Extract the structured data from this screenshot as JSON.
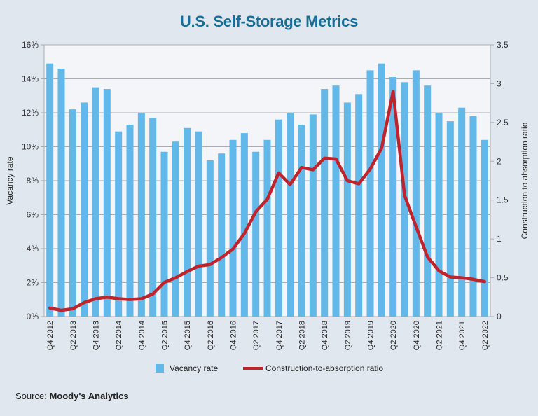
{
  "title": "U.S. Self-Storage Metrics",
  "source": {
    "label": "Source:",
    "name": "Moody's Analytics"
  },
  "chart_data": {
    "type": "bar+line",
    "title": "U.S. Self-Storage Metrics",
    "categories": [
      "Q4 2012",
      "Q1 2013",
      "Q2 2013",
      "Q3 2013",
      "Q4 2013",
      "Q1 2014",
      "Q2 2014",
      "Q3 2014",
      "Q4 2014",
      "Q1 2015",
      "Q2 2015",
      "Q3 2015",
      "Q4 2015",
      "Q1 2016",
      "Q2 2016",
      "Q3 2016",
      "Q4 2016",
      "Q1 2017",
      "Q2 2017",
      "Q3 2017",
      "Q4 2017",
      "Q1 2018",
      "Q2 2018",
      "Q3 2018",
      "Q4 2018",
      "Q1 2019",
      "Q2 2019",
      "Q3 2019",
      "Q4 2019",
      "Q1 2020",
      "Q2 2020",
      "Q3 2020",
      "Q4 2020",
      "Q1 2021",
      "Q2 2021",
      "Q3 2021",
      "Q4 2021",
      "Q1 2022",
      "Q2 2022"
    ],
    "tick_labels": [
      "Q4 2012",
      "Q2 2013",
      "Q4 2013",
      "Q2 2014",
      "Q4 2014",
      "Q2 2015",
      "Q4 2015",
      "Q2 2016",
      "Q4 2016",
      "Q2 2017",
      "Q4 2017",
      "Q2 2018",
      "Q4 2018",
      "Q2 2019",
      "Q4 2019",
      "Q2 2020",
      "Q4 2020",
      "Q2 2021",
      "Q4 2021",
      "Q2 2022"
    ],
    "series": [
      {
        "name": "Vacancy rate",
        "type": "bar",
        "axis": "left",
        "color": "#62b8e8",
        "values": [
          14.9,
          14.6,
          12.2,
          12.6,
          13.5,
          13.4,
          10.9,
          11.3,
          12.0,
          11.7,
          9.7,
          10.3,
          11.1,
          10.9,
          9.2,
          9.6,
          10.4,
          10.8,
          9.7,
          10.4,
          11.6,
          12.0,
          11.3,
          11.9,
          13.4,
          13.6,
          12.6,
          13.1,
          14.5,
          14.9,
          14.1,
          13.8,
          14.5,
          13.6,
          12.0,
          11.5,
          12.3,
          11.8,
          10.4
        ]
      },
      {
        "name": "Construction-to-absorption ratio",
        "type": "line",
        "axis": "right",
        "color": "#c0232b",
        "values": [
          0.11,
          0.08,
          0.1,
          0.18,
          0.23,
          0.25,
          0.23,
          0.22,
          0.23,
          0.29,
          0.44,
          0.5,
          0.58,
          0.65,
          0.67,
          0.76,
          0.87,
          1.07,
          1.35,
          1.51,
          1.85,
          1.7,
          1.92,
          1.89,
          2.04,
          2.03,
          1.75,
          1.71,
          1.9,
          2.17,
          2.9,
          1.56,
          1.16,
          0.77,
          0.59,
          0.51,
          0.5,
          0.48,
          0.45
        ]
      }
    ],
    "y_left": {
      "label": "Vacancy rate",
      "range": [
        0,
        16
      ],
      "ticks": [
        "0%",
        "2%",
        "4%",
        "6%",
        "8%",
        "10%",
        "12%",
        "14%",
        "16%"
      ]
    },
    "y_right": {
      "label": "Construction to absorption ratio",
      "range": [
        0,
        3.5
      ],
      "ticks": [
        "0",
        "0.5",
        "1",
        "1.5",
        "2",
        "2.5",
        "3",
        "3.5"
      ]
    },
    "grid": true,
    "legend": "bottom"
  }
}
